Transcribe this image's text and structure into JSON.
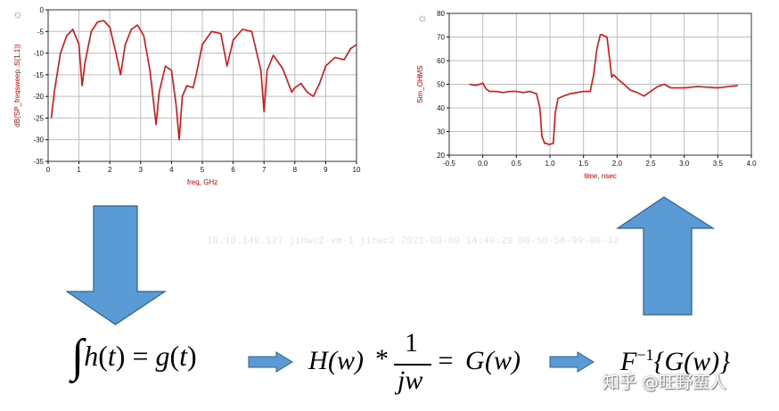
{
  "chart_data": [
    {
      "type": "line",
      "xlabel": "freq, GHz",
      "ylabel": "dB(SP_freqsweep..S(1,1))",
      "xlim": [
        0,
        10
      ],
      "ylim": [
        -35,
        0
      ],
      "xticks": [
        "0",
        "1",
        "2",
        "3",
        "4",
        "5",
        "6",
        "7",
        "8",
        "9",
        "10"
      ],
      "yticks": [
        "0",
        "-5",
        "-10",
        "-15",
        "-20",
        "-25",
        "-30",
        "-35"
      ],
      "grid": true,
      "line_color": "#dd1111",
      "series": [
        {
          "x": [
            0.1,
            0.2,
            0.4,
            0.6,
            0.8,
            1.0,
            1.1,
            1.2,
            1.4,
            1.6,
            1.8,
            2.0,
            2.2,
            2.35,
            2.5,
            2.7,
            2.9,
            3.1,
            3.3,
            3.5,
            3.6,
            3.8,
            4.0,
            4.15,
            4.25,
            4.35,
            4.5,
            4.7,
            4.8,
            5.0,
            5.3,
            5.6,
            5.8,
            6.0,
            6.3,
            6.6,
            6.9,
            7.0,
            7.1,
            7.3,
            7.6,
            7.9,
            8.0,
            8.2,
            8.4,
            8.6,
            8.8,
            9.0,
            9.3,
            9.6,
            9.8,
            10.0
          ],
          "y": [
            -25,
            -19,
            -10,
            -6,
            -4.5,
            -8,
            -17.5,
            -12,
            -5,
            -2.8,
            -2.5,
            -4,
            -10,
            -15,
            -8,
            -4.5,
            -3.5,
            -6,
            -14,
            -26.5,
            -19,
            -13,
            -14,
            -22,
            -30,
            -20,
            -17.5,
            -18,
            -15,
            -8,
            -5,
            -5.5,
            -13,
            -7,
            -4.5,
            -5,
            -14,
            -23.5,
            -14,
            -10.5,
            -13.5,
            -19,
            -18,
            -17,
            -19,
            -20,
            -17,
            -13,
            -11,
            -11.5,
            -9,
            -8
          ]
        }
      ]
    },
    {
      "type": "line",
      "xlabel": "time, nsec",
      "ylabel": "Sim_OHMS",
      "xlim": [
        -0.5,
        4.0
      ],
      "ylim": [
        20,
        80
      ],
      "xticks": [
        "-0.5",
        "0.0",
        "0.5",
        "1.0",
        "1.5",
        "2.0",
        "2.5",
        "3.0",
        "3.5",
        "4.0"
      ],
      "yticks": [
        "80",
        "70",
        "60",
        "50",
        "40",
        "30",
        "20"
      ],
      "grid": true,
      "line_color": "#dd1111",
      "series": [
        {
          "x": [
            -0.2,
            -0.1,
            0.0,
            0.05,
            0.1,
            0.2,
            0.3,
            0.4,
            0.5,
            0.6,
            0.7,
            0.8,
            0.85,
            0.88,
            0.92,
            0.95,
            0.98,
            1.05,
            1.08,
            1.12,
            1.2,
            1.3,
            1.4,
            1.5,
            1.6,
            1.65,
            1.7,
            1.75,
            1.78,
            1.8,
            1.85,
            1.9,
            1.92,
            1.95,
            2.0,
            2.1,
            2.2,
            2.3,
            2.4,
            2.5,
            2.6,
            2.7,
            2.8,
            3.0,
            3.2,
            3.5,
            3.8
          ],
          "y": [
            50,
            49.5,
            50.5,
            48,
            47,
            47,
            46.5,
            47,
            47,
            46.5,
            47,
            46,
            40,
            28,
            25,
            25,
            24.5,
            25,
            38,
            44,
            45,
            46,
            46.5,
            47,
            47,
            54,
            65,
            71,
            71,
            70.5,
            70,
            58,
            53,
            54,
            52.5,
            50,
            47.5,
            46.5,
            45,
            47,
            49,
            50,
            48.5,
            48.5,
            49,
            48.5,
            49.5
          ]
        }
      ]
    }
  ],
  "watermark": "10.10.149.127  jinwc2-vm-1  jinwc2  2021-09-09  14:49:29  00-50-56-99-00-33",
  "equation": {
    "eq1_h": "h",
    "eq1_paren_open": "(",
    "eq1_t1": "t",
    "eq1_paren_close": ")",
    "eq1_equals": " = ",
    "eq1_g": "g",
    "eq1_paren_open2": "(",
    "eq1_t2": "t",
    "eq1_paren_close2": ")",
    "eq2_H": "H",
    "eq2_arg": "(w)",
    "eq2_star": "*",
    "eq2_num": "1",
    "eq2_den": "jw",
    "eq2_equals": " = ",
    "eq2_G": "G",
    "eq2_arg2": "(w)",
    "eq3_F": "F",
    "eq3_sup": "−1",
    "eq3_body": "{G(w)}"
  },
  "zhihu_brand": "知乎 @旺野蛮人",
  "colors": {
    "arrow_fill": "#5b9bd5",
    "arrow_stroke": "#2f5f8f",
    "plot_line": "#dd1111",
    "grid": "#bdbdbd"
  }
}
